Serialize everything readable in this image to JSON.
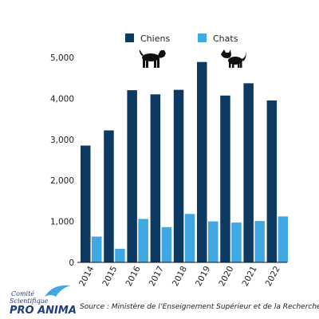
{
  "chart_data": {
    "type": "bar",
    "categories": [
      "2014",
      "2015",
      "2016",
      "2017",
      "2018",
      "2019",
      "2020",
      "2021",
      "2022"
    ],
    "series": [
      {
        "name": "Chiens",
        "values": [
          2850,
          3220,
          4200,
          4100,
          4210,
          4890,
          4070,
          4370,
          3950
        ],
        "color": "#0d3a63",
        "icon": "dog-icon"
      },
      {
        "name": "Chats",
        "values": [
          630,
          330,
          1060,
          860,
          1180,
          1000,
          970,
          1010,
          1120
        ],
        "color": "#3fa7e1",
        "icon": "cat-icon"
      }
    ],
    "y_ticks": [
      "0",
      "1,000",
      "2,000",
      "3,000",
      "4,000",
      "5,000"
    ],
    "ylim": [
      0,
      5000
    ],
    "grid": false,
    "legend_position": "top"
  },
  "logo": {
    "line1": "Comité",
    "line2": "Scientifique",
    "line3": "PRO ANIMA"
  },
  "source": "Source : Ministère de l’Enseignement Supérieur et de la Recherche"
}
